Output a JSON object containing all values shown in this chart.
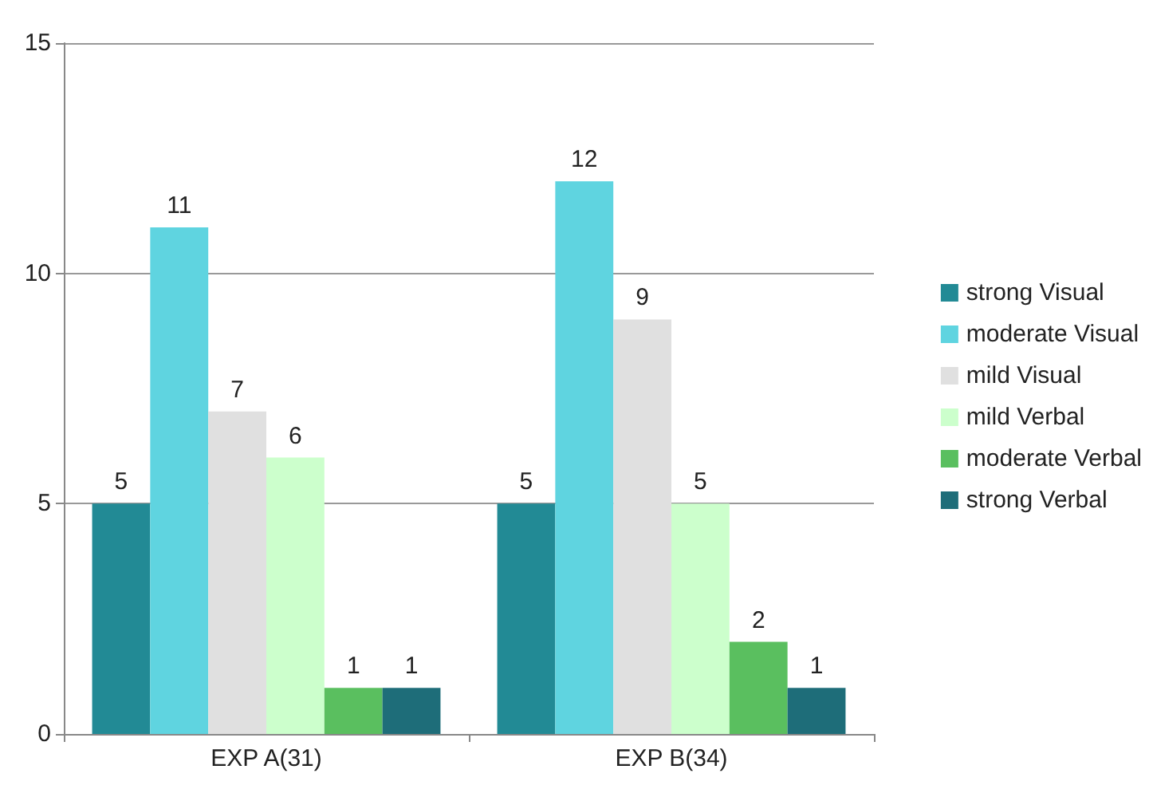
{
  "chart_data": {
    "type": "bar",
    "categories": [
      "EXP A(31)",
      "EXP B(34)"
    ],
    "series": [
      {
        "name": "strong Visual",
        "color": "#228a95",
        "values": [
          5,
          5
        ]
      },
      {
        "name": "moderate Visual",
        "color": "#5fd4e0",
        "values": [
          11,
          12
        ]
      },
      {
        "name": "mild Visual",
        "color": "#e0e0e0",
        "values": [
          7,
          9
        ]
      },
      {
        "name": "mild Verbal",
        "color": "#ccffcc",
        "values": [
          6,
          5
        ]
      },
      {
        "name": "moderate Verbal",
        "color": "#5abf5f",
        "values": [
          1,
          2
        ]
      },
      {
        "name": "strong Verbal",
        "color": "#1e6d79",
        "values": [
          1,
          1
        ]
      }
    ],
    "ylim": [
      0,
      15
    ],
    "yticks": [
      0,
      5,
      10,
      15
    ],
    "grid": "y",
    "legend": "right",
    "data_labels": true
  }
}
